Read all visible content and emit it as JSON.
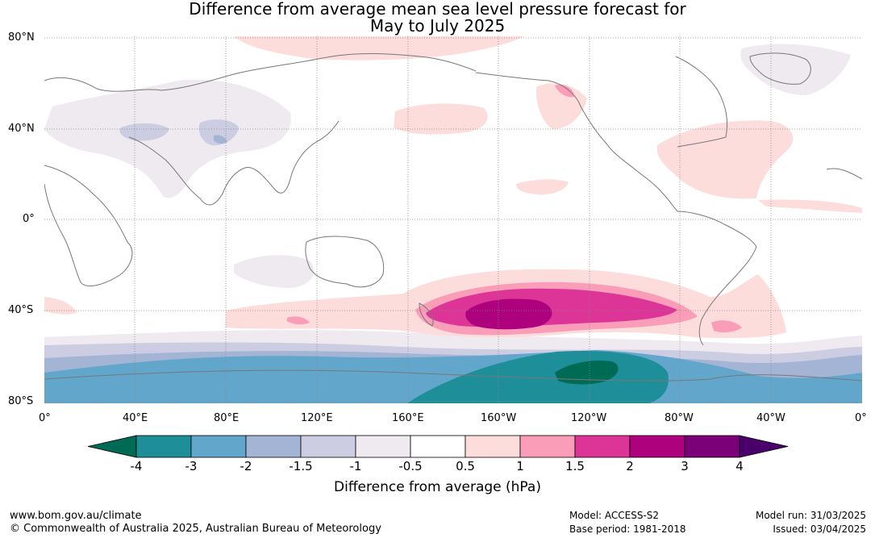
{
  "title": {
    "line1": "Difference from average mean sea level pressure forecast for",
    "line2": "May to July 2025"
  },
  "map": {
    "lat_labels": [
      "80°N",
      "40°N",
      "0°",
      "40°S",
      "80°S"
    ],
    "lon_labels": [
      "0°",
      "40°E",
      "80°E",
      "120°E",
      "160°E",
      "160°W",
      "120°W",
      "80°W",
      "40°W",
      "0°"
    ]
  },
  "colorbar": {
    "label": "Difference from average (hPa)",
    "ticks": [
      "-4",
      "-3",
      "-2",
      "-1.5",
      "-1",
      "-0.5",
      "0.5",
      "1",
      "1.5",
      "2",
      "3",
      "4"
    ],
    "colors": {
      "below_min": "#006b54",
      "bins": [
        "#1e8f99",
        "#62a6cc",
        "#a3b4d4",
        "#cccde3",
        "#efe9f0",
        "#ffffff",
        "#fddcdc",
        "#f99db9",
        "#dd3497",
        "#ae017e",
        "#7a0177"
      ],
      "above_max": "#49006a"
    }
  },
  "footer": {
    "website": "www.bom.gov.au/climate",
    "copyright": "© Commonwealth of Australia 2025, Australian Bureau of Meteorology",
    "model": "Model: ACCESS-S2",
    "base_period": "Base period: 1981-2018",
    "model_run": "Model run: 31/03/2025",
    "issued": "Issued: 03/04/2025"
  }
}
